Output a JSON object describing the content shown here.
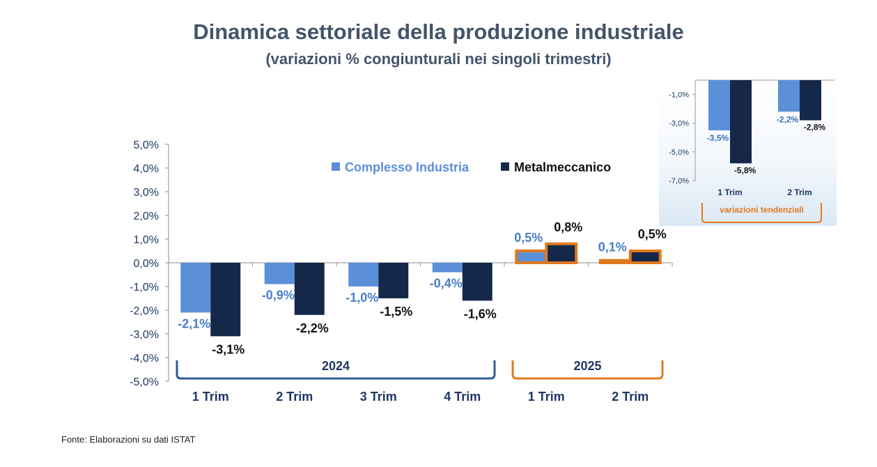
{
  "title": "Dinamica settoriale della produzione industriale",
  "subtitle": "(variazioni % congiunturali nei singoli trimestri)",
  "source": "Fonte: Elaborazioni su dati ISTAT",
  "colors": {
    "complesso": "#5b8fd8",
    "metalmeccanico": "#15284a",
    "axis_text": "#1f3864",
    "orange": "#e07a1e",
    "blue_bracket": "#2e5c94"
  },
  "chart_data": [
    {
      "type": "bar",
      "categories": [
        "1 Trim",
        "2 Trim",
        "3 Trim",
        "4 Trim",
        "1 Trim",
        "2 Trim"
      ],
      "groups": [
        {
          "label": "2024",
          "from": 0,
          "to": 3
        },
        {
          "label": "2025",
          "from": 4,
          "to": 5
        }
      ],
      "series": [
        {
          "name": "Complesso Industria",
          "values": [
            -2.1,
            -0.9,
            -1.0,
            -0.4,
            0.5,
            0.1
          ],
          "labels": [
            "-2,1%",
            "-0,9%",
            "-1,0%",
            "-0,4%",
            "0,5%",
            "0,1%"
          ]
        },
        {
          "name": "Metalmeccanico",
          "values": [
            -3.1,
            -2.2,
            -1.5,
            -1.6,
            0.8,
            0.5
          ],
          "labels": [
            "-3,1%",
            "-2,2%",
            "-1,5%",
            "-1,6%",
            "0,8%",
            "0,5%"
          ]
        }
      ],
      "ylim": [
        -5,
        5
      ],
      "yticks": [
        "5,0%",
        "4,0%",
        "3,0%",
        "2,0%",
        "1,0%",
        "0,0%",
        "-1,0%",
        "-2,0%",
        "-3,0%",
        "-4,0%",
        "-5,0%"
      ],
      "highlighted_categories": [
        4,
        5
      ],
      "legend": "top-right",
      "grid": false
    },
    {
      "type": "bar",
      "title": "variazioni tendenziali",
      "categories": [
        "1 Trim",
        "2 Trim"
      ],
      "series": [
        {
          "name": "Complesso Industria",
          "values": [
            -3.5,
            -2.2
          ],
          "labels": [
            "-3,5%",
            "-2,2%"
          ]
        },
        {
          "name": "Metalmeccanico",
          "values": [
            -5.8,
            -2.8
          ],
          "labels": [
            "-5,8%",
            "-2,8%"
          ]
        }
      ],
      "ylim": [
        -7,
        0
      ],
      "yticks": [
        "-1,0%",
        "-3,0%",
        "-5,0%",
        "-7,0%"
      ],
      "grid": false
    }
  ]
}
